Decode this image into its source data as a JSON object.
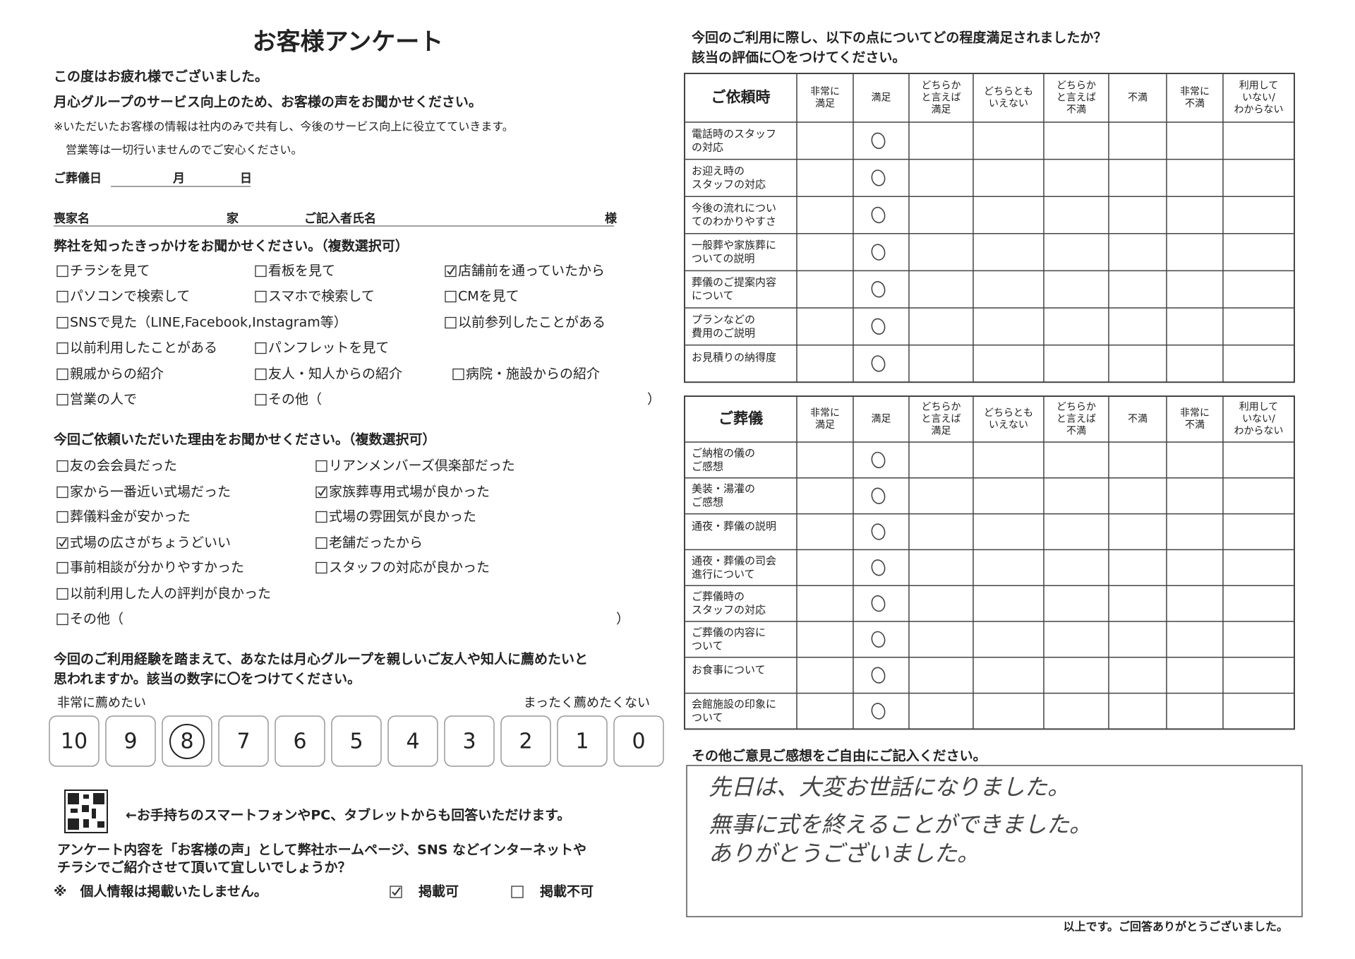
{
  "header": {
    "title": "お客様アンケート",
    "intro": [
      "この度はお疲れ様でございました。",
      "月心グループのサービス向上のため、お客様の声をお聞かせください。"
    ],
    "notes": [
      "※いただいたお客様の情報は社内のみで共有し、今後のサービス向上に役立てていきます。",
      "営業等は一切行いませんのでご安心ください。"
    ]
  },
  "fields": {
    "date": [
      "ご葬儀日",
      "月",
      "日"
    ],
    "names": [
      "喪家名",
      "家",
      "ご記入者氏名",
      "様"
    ]
  },
  "source": {
    "title": "弊社を知ったきっかけをお聞かせください。（複数選択可）",
    "options": [
      [
        {
          "label": "チラシを見て",
          "checked": false
        },
        {
          "label": "看板を見て",
          "checked": false
        },
        {
          "label": "店舗前を通っていたから",
          "checked": true
        }
      ],
      [
        {
          "label": "パソコンで検索して",
          "checked": false
        },
        {
          "label": "スマホで検索して",
          "checked": false
        },
        {
          "label": "CMを見て",
          "checked": false
        }
      ],
      [
        {
          "label": "SNSで見た（LINE,Facebook,Instagram等）",
          "checked": false
        },
        null,
        {
          "label": "以前参列したことがある",
          "checked": false
        }
      ],
      [
        {
          "label": "以前利用したことがある",
          "checked": false
        },
        {
          "label": "パンフレットを見て",
          "checked": false
        },
        null
      ],
      [
        {
          "label": "親戚からの紹介",
          "checked": false
        },
        {
          "label": "友人・知人からの紹介",
          "checked": false
        },
        {
          "label": "病院・施設からの紹介",
          "checked": false
        }
      ],
      [
        {
          "label": "営業の人で",
          "checked": false
        },
        {
          "label": "その他（",
          "checked": false,
          "close": "）"
        },
        null
      ]
    ]
  },
  "reason": {
    "title": "今回ご依頼いただいた理由をお聞かせください。（複数選択可）",
    "options": [
      [
        {
          "label": "友の会会員だった",
          "checked": false
        },
        {
          "label": "リアンメンバーズ倶楽部だった",
          "checked": false
        }
      ],
      [
        {
          "label": "家から一番近い式場だった",
          "checked": false
        },
        {
          "label": "家族葬専用式場が良かった",
          "checked": true
        }
      ],
      [
        {
          "label": "葬儀料金が安かった",
          "checked": false
        },
        {
          "label": "式場の雰囲気が良かった",
          "checked": false
        }
      ],
      [
        {
          "label": "式場の広さがちょうどいい",
          "checked": true
        },
        {
          "label": "老舗だったから",
          "checked": false
        }
      ],
      [
        {
          "label": "事前相談が分かりやすかった",
          "checked": false
        },
        {
          "label": "スタッフの対応が良かった",
          "checked": false
        }
      ],
      [
        {
          "label": "以前利用した人の評判が良かった",
          "checked": false
        },
        null
      ],
      [
        {
          "label": "その他（",
          "checked": false,
          "close": "）"
        },
        null
      ]
    ]
  },
  "recommend": {
    "question": [
      "今回のご利用経験を踏まえて、あなたは月心グループを親しいご友人や知人に薦めたいと",
      "思われますか。該当の数字に〇をつけてください。"
    ],
    "high_label": "非常に薦めたい",
    "low_label": "まったく薦めたくない",
    "scale": [
      "10",
      "9",
      "8",
      "7",
      "6",
      "5",
      "4",
      "3",
      "2",
      "1",
      "0"
    ],
    "selected": 2
  },
  "online": {
    "text": "←お手持ちのスマートフォンやPC、タブレットからも回答いただけます。"
  },
  "publish": {
    "question": [
      "アンケート内容を「お客様の声」として弊社ホームページ、SNS などインターネットや",
      "チラシでご紹介させて頂いて宜しいでしょうか？"
    ],
    "note": "※　個人情報は掲載いたしません。",
    "options": [
      {
        "label": "掲載可",
        "checked": true
      },
      {
        "label": "掲載不可",
        "checked": false
      }
    ]
  },
  "satisfaction": {
    "question": [
      "今回のご利用に際し、以下の点についてどの程度満足されましたか？",
      "該当の評価に〇をつけてください。"
    ],
    "columns": [
      [
        "非常に",
        "満足"
      ],
      [
        "満足"
      ],
      [
        "どちらか",
        "と言えば",
        "満足"
      ],
      [
        "どちらとも",
        "いえない"
      ],
      [
        "どちらか",
        "と言えば",
        "不満"
      ],
      [
        "不満"
      ],
      [
        "非常に",
        "不満"
      ],
      [
        "利用して",
        "いない/",
        "わからない"
      ]
    ],
    "tables": [
      {
        "title": "ご依頼時",
        "rows": [
          {
            "lines": [
              "電話時のスタッフ",
              "の対応"
            ],
            "selected": 1
          },
          {
            "lines": [
              "お迎え時の",
              "スタッフの対応"
            ],
            "selected": 1
          },
          {
            "lines": [
              "今後の流れについ",
              "てのわかりやすさ"
            ],
            "selected": 1
          },
          {
            "lines": [
              "一般葬や家族葬に",
              "ついての説明"
            ],
            "selected": 1
          },
          {
            "lines": [
              "葬儀のご提案内容",
              "について"
            ],
            "selected": 1
          },
          {
            "lines": [
              "プランなどの",
              "費用のご説明"
            ],
            "selected": 1
          },
          {
            "lines": [
              "お見積りの納得度"
            ],
            "selected": 1
          }
        ]
      },
      {
        "title": "ご葬儀",
        "rows": [
          {
            "lines": [
              "ご納棺の儀の",
              "ご感想"
            ],
            "selected": 1
          },
          {
            "lines": [
              "美装・湯灌の",
              "ご感想"
            ],
            "selected": 1
          },
          {
            "lines": [
              "通夜・葬儀の説明"
            ],
            "selected": 1
          },
          {
            "lines": [
              "通夜・葬儀の司会",
              "進行について"
            ],
            "selected": 1
          },
          {
            "lines": [
              "ご葬儀時の",
              "スタッフの対応"
            ],
            "selected": 1
          },
          {
            "lines": [
              "ご葬儀の内容に",
              "ついて"
            ],
            "selected": 1
          },
          {
            "lines": [
              "お食事について"
            ],
            "selected": 1
          },
          {
            "lines": [
              "会館施設の印象に",
              "ついて"
            ],
            "selected": 1
          }
        ]
      }
    ]
  },
  "comments": {
    "title": "その他ご意見ご感想をご自由にご記入ください。",
    "handwritten": [
      "先日は、大変お世話になりました。",
      "無事に式を終えることができました。",
      "ありがとうございました。"
    ]
  },
  "footer": {
    "text": "以上です。ご回答ありがとうございました。"
  }
}
